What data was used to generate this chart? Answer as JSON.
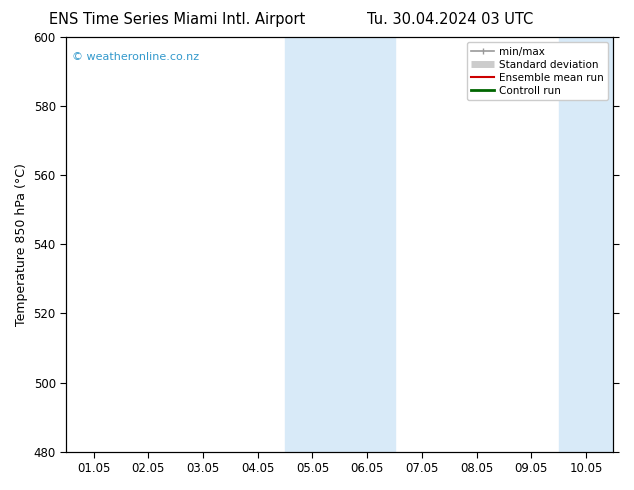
{
  "title_left": "ENS Time Series Miami Intl. Airport",
  "title_right": "Tu. 30.04.2024 03 UTC",
  "ylabel": "Temperature 850 hPa (°C)",
  "ylim": [
    480,
    600
  ],
  "yticks": [
    480,
    500,
    520,
    540,
    560,
    580,
    600
  ],
  "xlabels": [
    "01.05",
    "02.05",
    "03.05",
    "04.05",
    "05.05",
    "06.05",
    "07.05",
    "08.05",
    "09.05",
    "10.05"
  ],
  "shaded_regions": [
    {
      "xstart": 3.5,
      "xend": 5.5
    },
    {
      "xstart": 8.5,
      "xend": 10.4
    }
  ],
  "shade_color": "#d8eaf8",
  "background_color": "#ffffff",
  "watermark": "© weatheronline.co.nz",
  "watermark_color": "#3399cc",
  "legend_entries": [
    {
      "label": "min/max",
      "color": "#999999",
      "lw": 1.2,
      "type": "minmax"
    },
    {
      "label": "Standard deviation",
      "color": "#cccccc",
      "lw": 5,
      "type": "band"
    },
    {
      "label": "Ensemble mean run",
      "color": "#cc0000",
      "lw": 1.5,
      "type": "line"
    },
    {
      "label": "Controll run",
      "color": "#006600",
      "lw": 2,
      "type": "line"
    }
  ],
  "title_fontsize": 10.5,
  "axis_fontsize": 9,
  "tick_fontsize": 8.5,
  "legend_fontsize": 7.5
}
